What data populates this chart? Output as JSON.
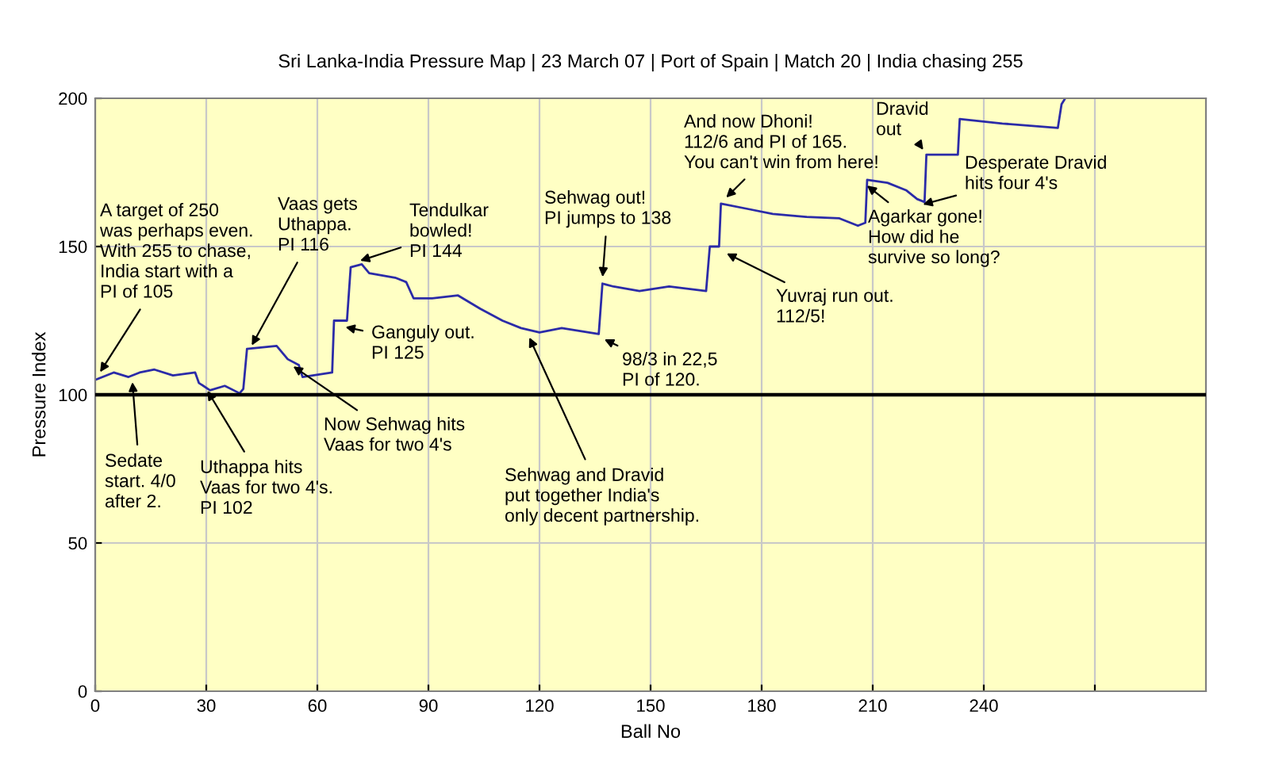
{
  "chart_data": {
    "type": "line",
    "title": "Sri Lanka-India Pressure Map | 23 March 07 | Port of Spain | Match 20 | India chasing 255",
    "xlabel": "Ball No",
    "ylabel": "Pressure Index",
    "xlim": [
      0,
      300
    ],
    "xticks": [
      0,
      30,
      60,
      90,
      120,
      150,
      180,
      210,
      240,
      {
        "value": 270,
        "label": null
      }
    ],
    "ylim": [
      0,
      200
    ],
    "yticks": [
      0,
      50,
      100,
      150,
      200
    ],
    "grid": true,
    "legend": false,
    "series": [
      {
        "color": "#2b2ba8",
        "x": [
          0,
          5,
          9,
          12,
          16,
          21,
          27,
          28,
          31,
          35,
          39,
          40,
          41,
          49,
          52,
          55,
          56,
          64,
          64.5,
          68,
          69,
          72,
          74,
          81,
          84,
          86,
          91,
          98,
          104,
          110,
          115,
          120,
          126,
          136,
          137,
          140,
          147,
          155,
          165,
          166,
          168.5,
          169,
          177,
          183,
          192,
          201,
          206,
          208,
          208.5,
          214,
          219,
          222,
          224,
          224.5,
          233,
          233.5,
          245,
          260,
          261,
          262
        ],
        "values": [
          105,
          107.5,
          106,
          107.5,
          108.5,
          106.5,
          107.5,
          104,
          101.5,
          103,
          100.5,
          102,
          115.5,
          116.5,
          112,
          110,
          106,
          107.5,
          125,
          125,
          143,
          144,
          141,
          139.5,
          138,
          132.5,
          132.5,
          133.5,
          129,
          125,
          122.5,
          121,
          122.5,
          120.5,
          137.5,
          136.5,
          135,
          136.5,
          135,
          150,
          150,
          164.5,
          162.5,
          161,
          160,
          159.5,
          157,
          158,
          172.5,
          171.5,
          169,
          166,
          165,
          181,
          181,
          193,
          191.5,
          190,
          198,
          200
        ]
      }
    ],
    "ref_lines": [
      {
        "axis": "y",
        "value": 100,
        "color": "#000000"
      }
    ],
    "annotations": [
      {
        "text": "A target of 250\nwas perhaps even.\nWith 255 to chase,\nIndia start with a\nPI of 105",
        "x": 1,
        "y": 107
      },
      {
        "text": "Sedate\nstart. 4/0\nafter 2.",
        "x": 10,
        "y": 105
      },
      {
        "text": "Uthappa hits\nVaas for two 4's.\nPI 102",
        "x": 30,
        "y": 102
      },
      {
        "text": "Vaas gets\nUthappa.\nPI 116",
        "x": 42,
        "y": 116
      },
      {
        "text": "Now Sehwag hits\nVaas for two 4's",
        "x": 53,
        "y": 110
      },
      {
        "text": "Tendulkar\nbowled!\nPI 144",
        "x": 71,
        "y": 145
      },
      {
        "text": "Ganguly out.\nPI 125",
        "x": 67,
        "y": 123
      },
      {
        "text": "Sehwag and Dravid\nput together India's\nonly decent partnership.",
        "x": 117,
        "y": 120
      },
      {
        "text": "98/3 in 22,5\nPI of 120.",
        "x": 137,
        "y": 119
      },
      {
        "text": "Sehwag out!\nPI jumps to 138",
        "x": 137,
        "y": 139
      },
      {
        "text": "And now Dhoni!\n112/6 and PI of 165.\nYou can't win from here!",
        "x": 170,
        "y": 166
      },
      {
        "text": "Yuvraj run out.\n112/5!",
        "x": 170,
        "y": 148
      },
      {
        "text": "Dravid\nout",
        "x": 224,
        "y": 182
      },
      {
        "text": "Desperate Dravid\nhits four 4's",
        "x": 223,
        "y": 164
      },
      {
        "text": "Agarkar gone!\nHow did he\nsurvive so long?",
        "x": 208,
        "y": 171
      }
    ]
  }
}
